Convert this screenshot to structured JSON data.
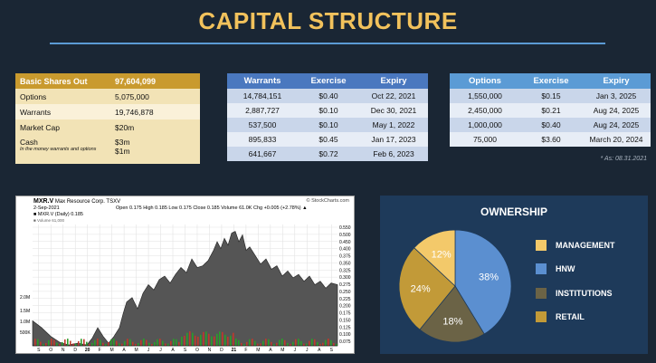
{
  "title": "CAPITAL STRUCTURE",
  "shares": {
    "header": {
      "label": "Basic Shares Out",
      "value": "97,604,099"
    },
    "rows": [
      {
        "label": "Options",
        "value": "5,075,000"
      },
      {
        "label": "Warrants",
        "value": "19,746,878"
      },
      {
        "label": "Market Cap",
        "value": "$20m"
      }
    ],
    "cash": {
      "label": "Cash",
      "note": "In the money warrants and options",
      "value1": "$3m",
      "value2": "$1m"
    }
  },
  "warrants": {
    "headers": [
      "Warrants",
      "Exercise",
      "Expiry"
    ],
    "rows": [
      [
        "14,784,151",
        "$0.40",
        "Oct 22, 2021"
      ],
      [
        "2,887,727",
        "$0.10",
        "Dec 30, 2021"
      ],
      [
        "537,500",
        "$0.10",
        "May 1, 2022"
      ],
      [
        "895,833",
        "$0.45",
        "Jan 17, 2023"
      ],
      [
        "641,667",
        "$0.72",
        "Feb 6, 2023"
      ]
    ]
  },
  "options": {
    "headers": [
      "Options",
      "Exercise",
      "Expiry"
    ],
    "rows": [
      [
        "1,550,000",
        "$0.15",
        "Jan 3, 2025"
      ],
      [
        "2,450,000",
        "$0.21",
        "Aug 24, 2025"
      ],
      [
        "1,000,000",
        "$0.40",
        "Aug 24, 2025"
      ],
      [
        "75,000",
        "$3.60",
        "March 20, 2024"
      ]
    ],
    "as_of": "* As: 08.31.2021"
  },
  "stock_chart": {
    "ticker": "MXR.V",
    "company": "Max Resource Corp.  TSXV",
    "brand": "© StockCharts.com",
    "date": "2-Sep-2021",
    "ohlc": "Open 0.175  High 0.185  Low 0.175  Close 0.185  Volume 61.0K  Chg +0.005 (+2.78%) ▲",
    "legend_price": "■ MXR.V (Daily) 0.185",
    "legend_volume": "■ Volume 61,000",
    "price_labels": [
      "0.550",
      "0.500",
      "0.450",
      "0.400",
      "0.375",
      "0.350",
      "0.325",
      "0.300",
      "0.275",
      "0.250",
      "0.225",
      "0.200",
      "0.175",
      "0.150",
      "0.125",
      "0.100",
      "0.075"
    ],
    "volume_labels": [
      "2.0M",
      "1.5M",
      "1.0M",
      "500K"
    ],
    "month_labels": [
      "S",
      "O",
      "N",
      "D",
      "20",
      "F",
      "M",
      "A",
      "M",
      "J",
      "J",
      "A",
      "S",
      "O",
      "N",
      "D",
      "21",
      "F",
      "M",
      "A",
      "M",
      "J",
      "J",
      "A",
      "S"
    ],
    "accent_up": "#2a9d2a",
    "accent_down": "#c0392b"
  },
  "ownership": {
    "title": "OWNERSHIP",
    "chart_data": {
      "type": "pie",
      "title": "OWNERSHIP",
      "slices": [
        {
          "label": "HNW",
          "value": 38,
          "color": "#5b8fd0"
        },
        {
          "label": "INSTITUTIONS",
          "value": 18,
          "color": "#6b6346"
        },
        {
          "label": "RETAIL",
          "value": 24,
          "color": "#c29a38"
        },
        {
          "label": "MANAGEMENT",
          "value": 12,
          "color": "#f3c96a"
        }
      ],
      "legend_order": [
        "MANAGEMENT",
        "HNW",
        "INSTITUTIONS",
        "RETAIL"
      ],
      "legend_placement": "right"
    }
  }
}
